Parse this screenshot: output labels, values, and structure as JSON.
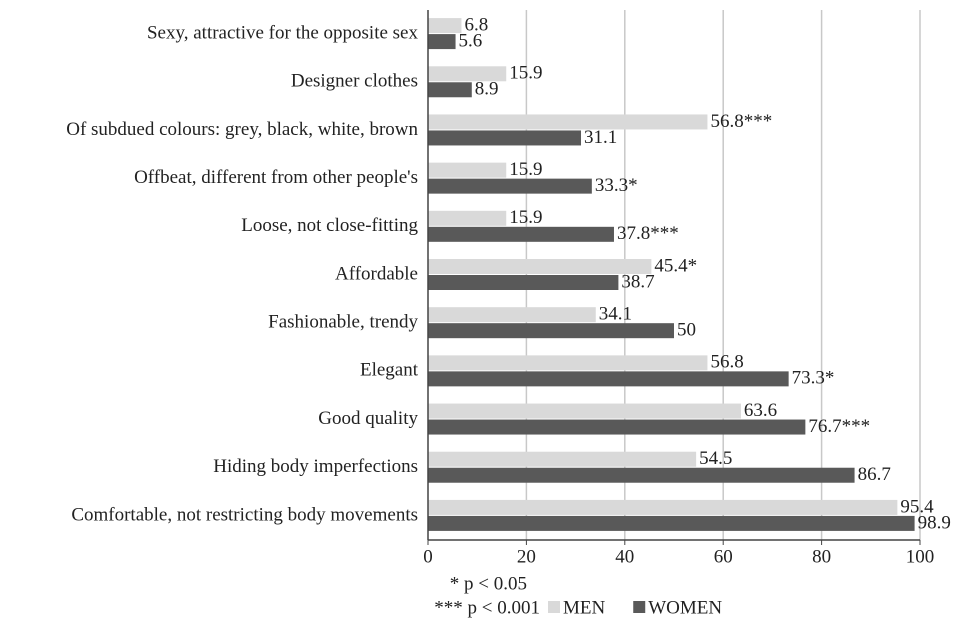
{
  "chart_data": {
    "type": "bar",
    "orientation": "horizontal",
    "categories": [
      "Sexy, attractive for the opposite sex",
      "Designer clothes",
      "Of subdued colours: grey, black, white, brown",
      "Offbeat, different from other people's",
      "Loose, not close-fitting",
      "Affordable",
      "Fashionable, trendy",
      "Elegant",
      "Good quality",
      "Hiding body imperfections",
      "Comfortable, not restricting body movements"
    ],
    "series": [
      {
        "name": "MEN",
        "color": "#d9d9d9",
        "values": [
          6.8,
          15.9,
          56.8,
          15.9,
          15.9,
          45.4,
          34.1,
          56.8,
          63.6,
          54.5,
          95.4
        ],
        "value_labels": [
          "6.8",
          "15.9",
          "56.8***",
          "15.9",
          "15.9",
          "45.4*",
          "34.1",
          "56.8",
          "63.6",
          "54.5",
          "95.4"
        ]
      },
      {
        "name": "WOMEN",
        "color": "#595959",
        "values": [
          5.6,
          8.9,
          31.1,
          33.3,
          37.8,
          38.7,
          50,
          73.3,
          76.7,
          86.7,
          98.9
        ],
        "value_labels": [
          "5.6",
          "8.9",
          "31.1",
          "33.3*",
          "37.8***",
          "38.7",
          "50",
          "73.3*",
          "76.7***",
          "86.7",
          "98.9"
        ]
      }
    ],
    "xlim": [
      0,
      100
    ],
    "xticks": [
      0,
      20,
      40,
      60,
      80,
      100
    ],
    "grid": true,
    "annotations": [
      "* p < 0.05",
      "*** p < 0.001"
    ]
  }
}
